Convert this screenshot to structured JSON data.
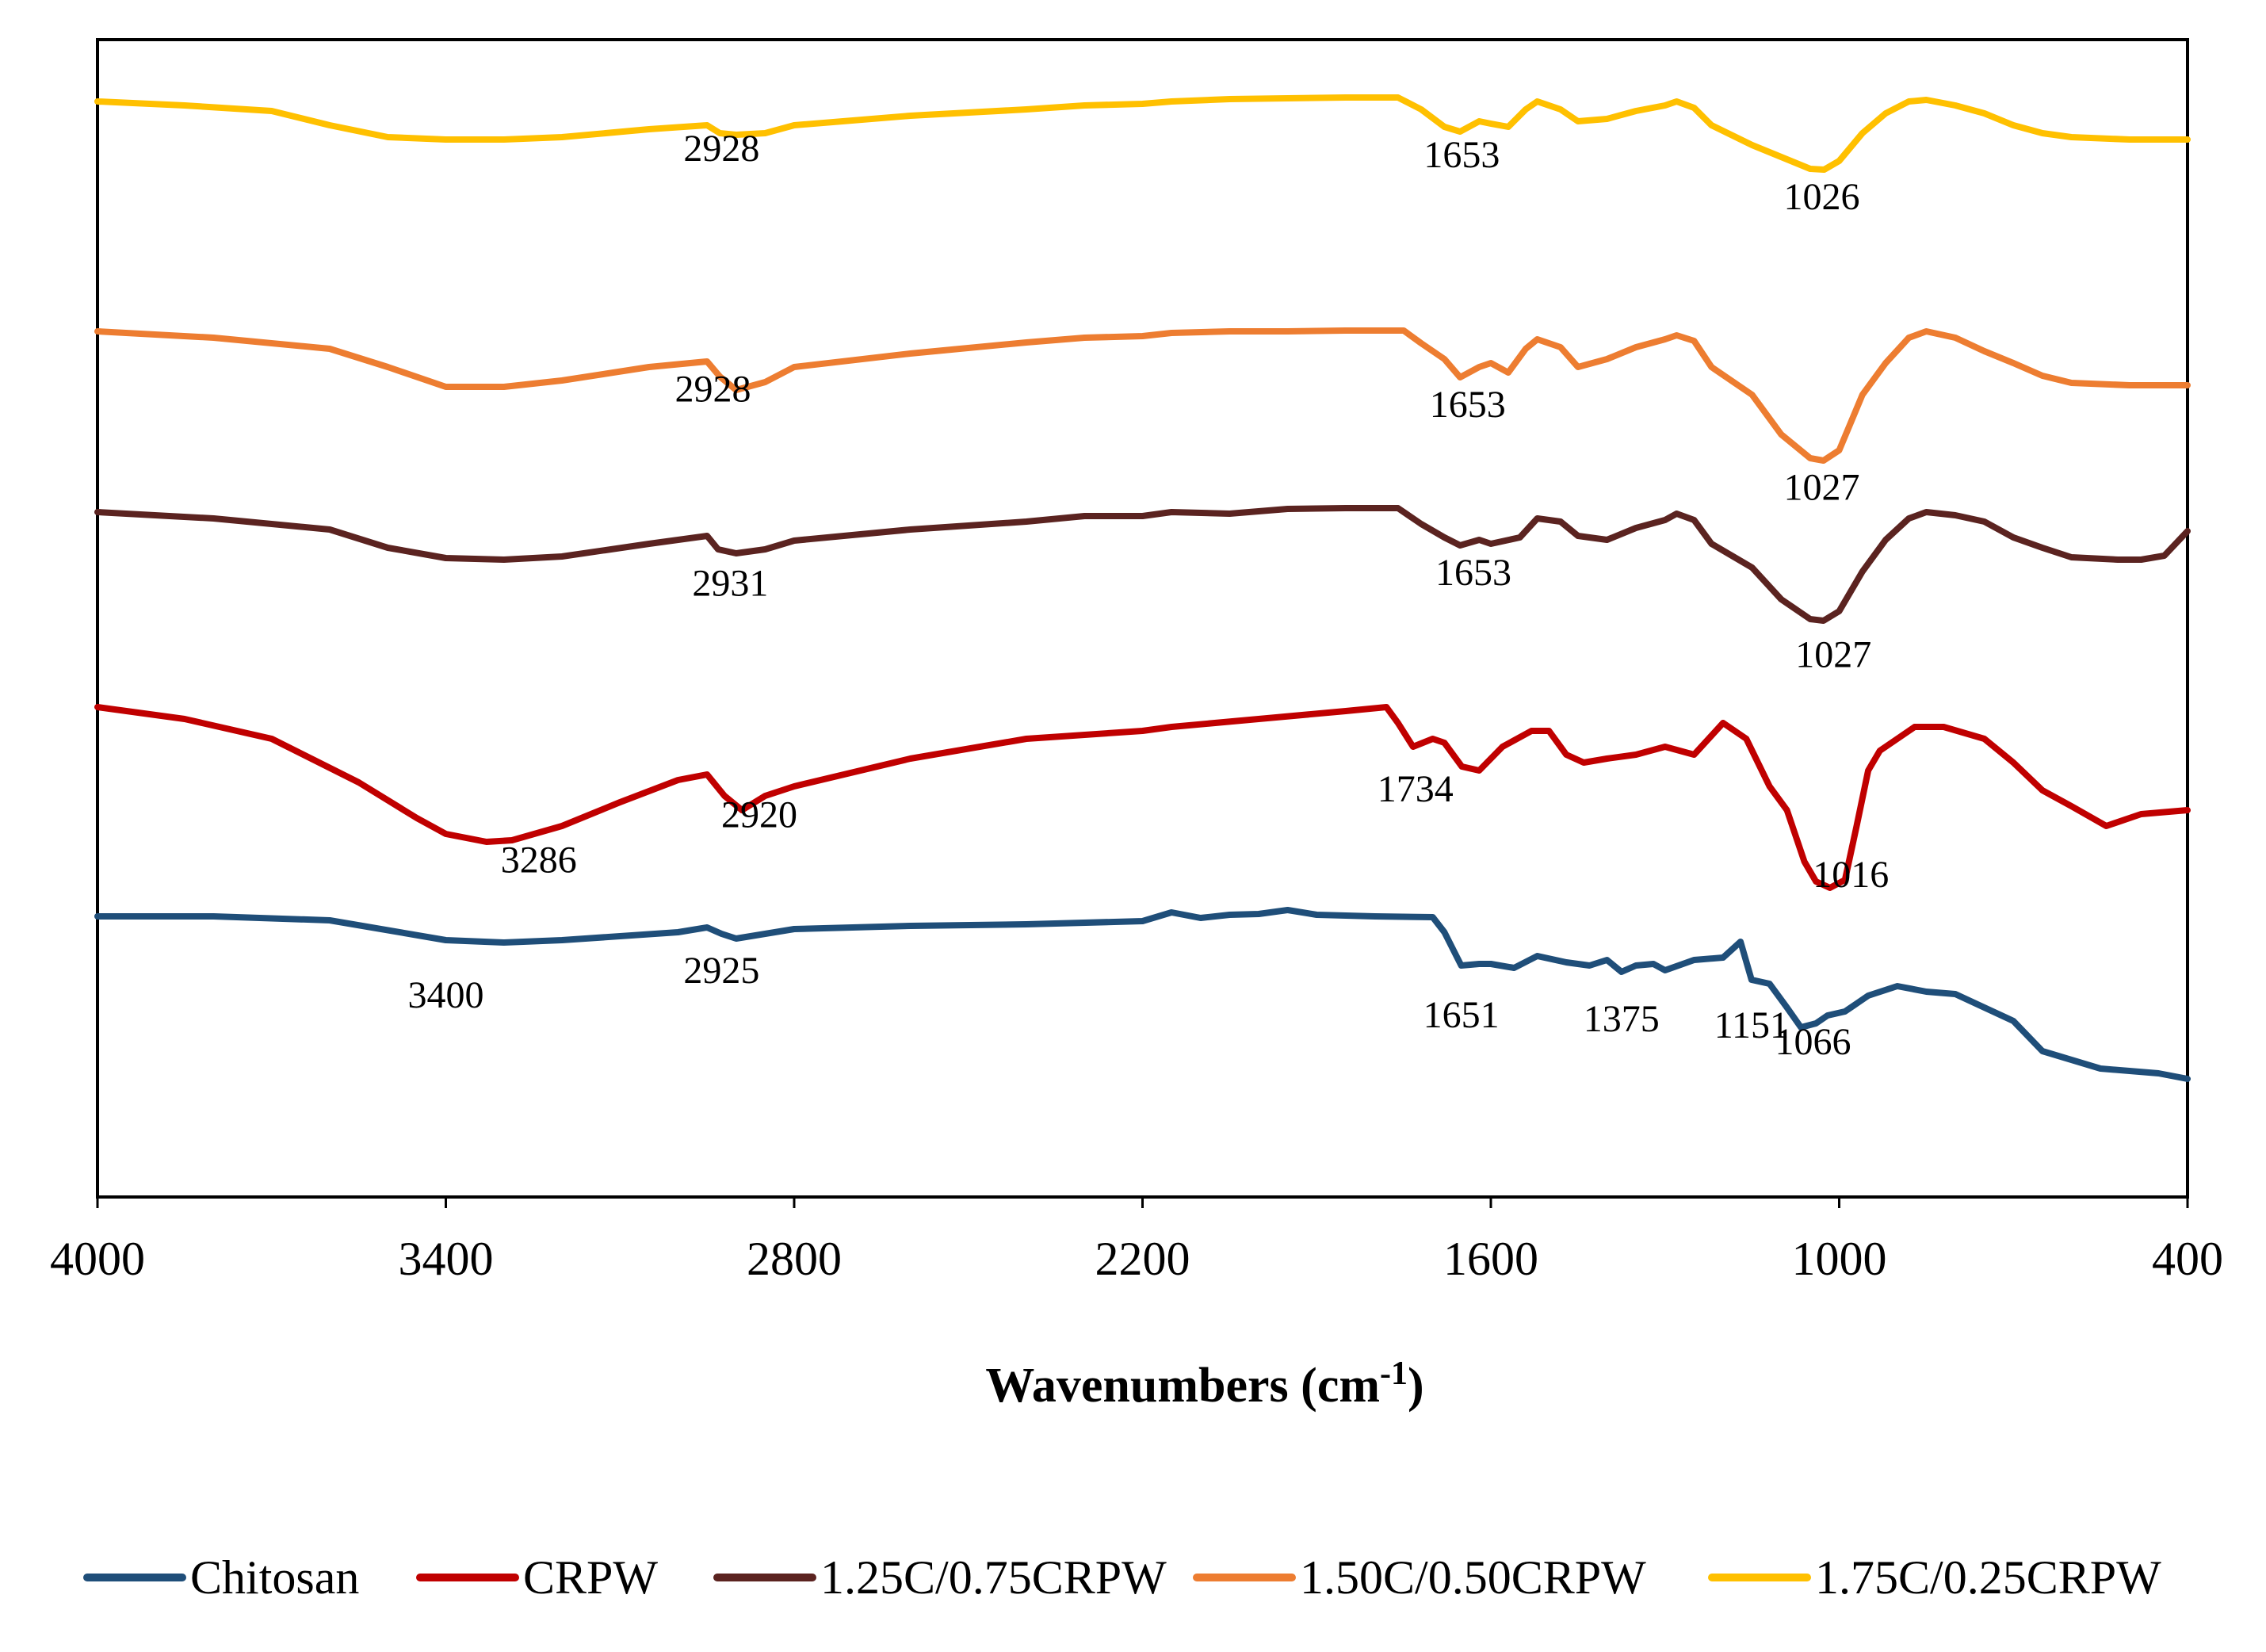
{
  "chart_data": {
    "type": "line",
    "title": "",
    "xlabel_main": "Wavenumbers (cm",
    "xlabel_sup": "-1",
    "xlabel_close": ")",
    "ylabel": "",
    "xlim": [
      4000,
      400
    ],
    "x_ticks": [
      "4000",
      "3400",
      "2800",
      "2200",
      "1600",
      "1000",
      "400"
    ],
    "x_tick_values": [
      4000,
      3400,
      2800,
      2200,
      1600,
      1000,
      400
    ],
    "y_axis_visible": false,
    "legend_position": "bottom",
    "series": [
      {
        "name": "Chitosan",
        "color": "#1f4e79",
        "baseline": 0,
        "points": [
          [
            4000,
            0
          ],
          [
            3800,
            0
          ],
          [
            3600,
            -5
          ],
          [
            3400,
            -30
          ],
          [
            3300,
            -33
          ],
          [
            3200,
            -30
          ],
          [
            3000,
            -20
          ],
          [
            2950,
            -14
          ],
          [
            2925,
            -22
          ],
          [
            2900,
            -28
          ],
          [
            2850,
            -22
          ],
          [
            2800,
            -16
          ],
          [
            2600,
            -12
          ],
          [
            2400,
            -10
          ],
          [
            2200,
            -6
          ],
          [
            2150,
            5
          ],
          [
            2100,
            -2
          ],
          [
            2050,
            2
          ],
          [
            2000,
            3
          ],
          [
            1950,
            8
          ],
          [
            1900,
            2
          ],
          [
            1800,
            0
          ],
          [
            1700,
            -1
          ],
          [
            1680,
            -20
          ],
          [
            1651,
            -62
          ],
          [
            1620,
            -60
          ],
          [
            1600,
            -60
          ],
          [
            1560,
            -65
          ],
          [
            1520,
            -50
          ],
          [
            1470,
            -58
          ],
          [
            1430,
            -62
          ],
          [
            1400,
            -55
          ],
          [
            1375,
            -70
          ],
          [
            1350,
            -62
          ],
          [
            1320,
            -60
          ],
          [
            1300,
            -68
          ],
          [
            1250,
            -55
          ],
          [
            1200,
            -52
          ],
          [
            1170,
            -32
          ],
          [
            1151,
            -80
          ],
          [
            1120,
            -85
          ],
          [
            1090,
            -115
          ],
          [
            1066,
            -140
          ],
          [
            1040,
            -135
          ],
          [
            1020,
            -125
          ],
          [
            990,
            -120
          ],
          [
            970,
            -110
          ],
          [
            950,
            -100
          ],
          [
            900,
            -88
          ],
          [
            850,
            -95
          ],
          [
            800,
            -98
          ],
          [
            700,
            -132
          ],
          [
            650,
            -170
          ],
          [
            550,
            -192
          ],
          [
            450,
            -198
          ],
          [
            400,
            -205
          ]
        ],
        "labels": [
          {
            "text": "3400",
            "wn": 3400,
            "off": 85
          },
          {
            "text": "2925",
            "wn": 2925,
            "off": 62
          },
          {
            "text": "1651",
            "wn": 1651,
            "off": 78
          },
          {
            "text": "1375",
            "wn": 1375,
            "off": 75
          },
          {
            "text": "1151",
            "wn": 1151,
            "off": 73
          },
          {
            "text": "1066",
            "wn": 1045,
            "off": 38
          }
        ]
      },
      {
        "name": "CRPW",
        "color": "#c00000",
        "baseline": 0,
        "points": [
          [
            4000,
            0
          ],
          [
            3850,
            -15
          ],
          [
            3700,
            -40
          ],
          [
            3550,
            -95
          ],
          [
            3450,
            -140
          ],
          [
            3400,
            -160
          ],
          [
            3330,
            -170
          ],
          [
            3286,
            -168
          ],
          [
            3200,
            -150
          ],
          [
            3100,
            -120
          ],
          [
            3000,
            -92
          ],
          [
            2950,
            -85
          ],
          [
            2920,
            -112
          ],
          [
            2890,
            -130
          ],
          [
            2850,
            -112
          ],
          [
            2800,
            -100
          ],
          [
            2600,
            -65
          ],
          [
            2400,
            -40
          ],
          [
            2200,
            -30
          ],
          [
            2150,
            -25
          ],
          [
            2000,
            -15
          ],
          [
            1850,
            -5
          ],
          [
            1780,
            0
          ],
          [
            1760,
            -20
          ],
          [
            1734,
            -50
          ],
          [
            1700,
            -40
          ],
          [
            1680,
            -45
          ],
          [
            1650,
            -75
          ],
          [
            1620,
            -80
          ],
          [
            1580,
            -50
          ],
          [
            1530,
            -30
          ],
          [
            1500,
            -30
          ],
          [
            1470,
            -60
          ],
          [
            1440,
            -70
          ],
          [
            1400,
            -65
          ],
          [
            1350,
            -60
          ],
          [
            1300,
            -50
          ],
          [
            1250,
            -60
          ],
          [
            1200,
            -20
          ],
          [
            1160,
            -40
          ],
          [
            1120,
            -100
          ],
          [
            1090,
            -130
          ],
          [
            1060,
            -195
          ],
          [
            1040,
            -220
          ],
          [
            1016,
            -228
          ],
          [
            990,
            -218
          ],
          [
            970,
            -150
          ],
          [
            950,
            -80
          ],
          [
            930,
            -55
          ],
          [
            900,
            -40
          ],
          [
            870,
            -25
          ],
          [
            820,
            -25
          ],
          [
            750,
            -40
          ],
          [
            700,
            -70
          ],
          [
            650,
            -105
          ],
          [
            600,
            -125
          ],
          [
            540,
            -150
          ],
          [
            480,
            -135
          ],
          [
            400,
            -130
          ]
        ],
        "labels": [
          {
            "text": "3286",
            "wn": 3240,
            "off": 50
          },
          {
            "text": "2920",
            "wn": 2860,
            "off": 35
          },
          {
            "text": "1734",
            "wn": 1730,
            "off": 70
          },
          {
            "text": "1016",
            "wn": 980,
            "off": 43
          }
        ]
      },
      {
        "name": "1.25C/0.75CRPW",
        "color": "#5b2320",
        "baseline": 0,
        "points": [
          [
            4000,
            0
          ],
          [
            3800,
            -8
          ],
          [
            3600,
            -22
          ],
          [
            3500,
            -45
          ],
          [
            3400,
            -58
          ],
          [
            3300,
            -60
          ],
          [
            3200,
            -56
          ],
          [
            3050,
            -40
          ],
          [
            2950,
            -30
          ],
          [
            2931,
            -47
          ],
          [
            2900,
            -52
          ],
          [
            2850,
            -47
          ],
          [
            2800,
            -36
          ],
          [
            2600,
            -22
          ],
          [
            2400,
            -12
          ],
          [
            2300,
            -5
          ],
          [
            2200,
            -5
          ],
          [
            2150,
            0
          ],
          [
            2050,
            -2
          ],
          [
            1950,
            4
          ],
          [
            1850,
            5
          ],
          [
            1760,
            5
          ],
          [
            1720,
            -15
          ],
          [
            1680,
            -32
          ],
          [
            1653,
            -42
          ],
          [
            1620,
            -35
          ],
          [
            1600,
            -40
          ],
          [
            1550,
            -32
          ],
          [
            1520,
            -8
          ],
          [
            1480,
            -12
          ],
          [
            1450,
            -30
          ],
          [
            1400,
            -35
          ],
          [
            1350,
            -20
          ],
          [
            1300,
            -10
          ],
          [
            1280,
            -2
          ],
          [
            1250,
            -10
          ],
          [
            1220,
            -40
          ],
          [
            1150,
            -70
          ],
          [
            1100,
            -110
          ],
          [
            1050,
            -135
          ],
          [
            1027,
            -137
          ],
          [
            1000,
            -125
          ],
          [
            960,
            -75
          ],
          [
            920,
            -35
          ],
          [
            880,
            -8
          ],
          [
            850,
            0
          ],
          [
            800,
            -4
          ],
          [
            750,
            -12
          ],
          [
            700,
            -32
          ],
          [
            650,
            -45
          ],
          [
            600,
            -57
          ],
          [
            520,
            -60
          ],
          [
            480,
            -60
          ],
          [
            440,
            -55
          ],
          [
            400,
            -24
          ]
        ],
        "labels": [
          {
            "text": "2931",
            "wn": 2910,
            "off": 55
          },
          {
            "text": "1653",
            "wn": 1630,
            "off": 55
          },
          {
            "text": "1027",
            "wn": 1010,
            "off": 66
          }
        ]
      },
      {
        "name": "1.50C/0.50CRPW",
        "color": "#ed7d31",
        "baseline": 0,
        "points": [
          [
            4000,
            0
          ],
          [
            3800,
            -8
          ],
          [
            3600,
            -22
          ],
          [
            3500,
            -45
          ],
          [
            3400,
            -70
          ],
          [
            3300,
            -70
          ],
          [
            3200,
            -62
          ],
          [
            3050,
            -45
          ],
          [
            2950,
            -38
          ],
          [
            2928,
            -57
          ],
          [
            2900,
            -74
          ],
          [
            2850,
            -64
          ],
          [
            2800,
            -45
          ],
          [
            2600,
            -28
          ],
          [
            2400,
            -14
          ],
          [
            2300,
            -8
          ],
          [
            2200,
            -6
          ],
          [
            2150,
            -2
          ],
          [
            2050,
            0
          ],
          [
            1950,
            0
          ],
          [
            1850,
            1
          ],
          [
            1750,
            1
          ],
          [
            1720,
            -15
          ],
          [
            1680,
            -35
          ],
          [
            1653,
            -58
          ],
          [
            1620,
            -45
          ],
          [
            1600,
            -40
          ],
          [
            1570,
            -52
          ],
          [
            1540,
            -22
          ],
          [
            1520,
            -10
          ],
          [
            1480,
            -20
          ],
          [
            1450,
            -45
          ],
          [
            1400,
            -35
          ],
          [
            1350,
            -20
          ],
          [
            1300,
            -10
          ],
          [
            1280,
            -5
          ],
          [
            1250,
            -12
          ],
          [
            1220,
            -45
          ],
          [
            1150,
            -80
          ],
          [
            1100,
            -130
          ],
          [
            1050,
            -160
          ],
          [
            1027,
            -163
          ],
          [
            1000,
            -150
          ],
          [
            960,
            -80
          ],
          [
            920,
            -40
          ],
          [
            880,
            -8
          ],
          [
            850,
            0
          ],
          [
            800,
            -8
          ],
          [
            750,
            -25
          ],
          [
            700,
            -40
          ],
          [
            650,
            -56
          ],
          [
            600,
            -65
          ],
          [
            500,
            -68
          ],
          [
            400,
            -68
          ]
        ],
        "labels": [
          {
            "text": "2928",
            "wn": 2940,
            "off": 42
          },
          {
            "text": "1653",
            "wn": 1640,
            "off": 55
          },
          {
            "text": "1027",
            "wn": 1030,
            "off": 50
          }
        ]
      },
      {
        "name": "1.75C/0.25CRPW",
        "color": "#ffc000",
        "baseline": 0,
        "points": [
          [
            4000,
            0
          ],
          [
            3850,
            -5
          ],
          [
            3700,
            -12
          ],
          [
            3600,
            -30
          ],
          [
            3500,
            -45
          ],
          [
            3400,
            -48
          ],
          [
            3300,
            -48
          ],
          [
            3200,
            -45
          ],
          [
            3050,
            -35
          ],
          [
            2950,
            -30
          ],
          [
            2928,
            -40
          ],
          [
            2900,
            -42
          ],
          [
            2850,
            -40
          ],
          [
            2800,
            -30
          ],
          [
            2600,
            -18
          ],
          [
            2400,
            -10
          ],
          [
            2300,
            -5
          ],
          [
            2200,
            -3
          ],
          [
            2150,
            0
          ],
          [
            2050,
            3
          ],
          [
            1950,
            4
          ],
          [
            1850,
            5
          ],
          [
            1760,
            5
          ],
          [
            1720,
            -10
          ],
          [
            1680,
            -32
          ],
          [
            1653,
            -38
          ],
          [
            1620,
            -25
          ],
          [
            1600,
            -28
          ],
          [
            1570,
            -32
          ],
          [
            1540,
            -10
          ],
          [
            1520,
            0
          ],
          [
            1480,
            -10
          ],
          [
            1450,
            -25
          ],
          [
            1400,
            -22
          ],
          [
            1350,
            -12
          ],
          [
            1300,
            -5
          ],
          [
            1280,
            0
          ],
          [
            1250,
            -8
          ],
          [
            1220,
            -30
          ],
          [
            1150,
            -55
          ],
          [
            1100,
            -70
          ],
          [
            1050,
            -85
          ],
          [
            1026,
            -86
          ],
          [
            1000,
            -75
          ],
          [
            960,
            -40
          ],
          [
            920,
            -15
          ],
          [
            880,
            0
          ],
          [
            850,
            2
          ],
          [
            800,
            -5
          ],
          [
            750,
            -15
          ],
          [
            700,
            -30
          ],
          [
            650,
            -40
          ],
          [
            600,
            -45
          ],
          [
            500,
            -48
          ],
          [
            400,
            -48
          ]
        ],
        "labels": [
          {
            "text": "2928",
            "wn": 2925,
            "off": 35
          },
          {
            "text": "1653",
            "wn": 1650,
            "off": 46
          },
          {
            "text": "1026",
            "wn": 1030,
            "off": 50
          }
        ]
      }
    ]
  }
}
